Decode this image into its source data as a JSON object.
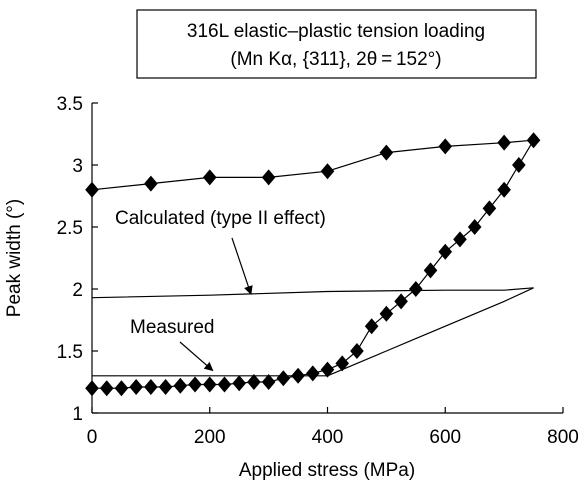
{
  "chart_data": {
    "type": "scatter",
    "title_lines": [
      "316L elastic–plastic tension loading",
      "(Mn Kα, {311}, 2θ = 152°)"
    ],
    "xlabel": "Applied stress (MPa)",
    "ylabel": "Peak width (°)",
    "xlim": [
      0,
      800
    ],
    "ylim": [
      1,
      3.5
    ],
    "x_ticks": [
      0,
      200,
      400,
      600,
      800
    ],
    "y_ticks": [
      1,
      1.5,
      2,
      2.5,
      3,
      3.5
    ],
    "x_tick_labels": [
      "0",
      "200",
      "400",
      "600",
      "800"
    ],
    "y_tick_labels": [
      "1",
      "1.5",
      "2",
      "2.5",
      "3",
      "3.5"
    ],
    "grid": false,
    "legend": "none",
    "series": [
      {
        "style": "line-markers",
        "marker": "diamond",
        "color": "#000000",
        "points": [
          [
            0,
            1.2
          ],
          [
            25,
            1.2
          ],
          [
            50,
            1.2
          ],
          [
            75,
            1.21
          ],
          [
            100,
            1.21
          ],
          [
            125,
            1.21
          ],
          [
            150,
            1.22
          ],
          [
            175,
            1.23
          ],
          [
            200,
            1.23
          ],
          [
            225,
            1.23
          ],
          [
            250,
            1.24
          ],
          [
            275,
            1.25
          ],
          [
            300,
            1.25
          ],
          [
            325,
            1.28
          ],
          [
            350,
            1.3
          ],
          [
            375,
            1.32
          ],
          [
            400,
            1.35
          ],
          [
            425,
            1.4
          ],
          [
            450,
            1.5
          ],
          [
            475,
            1.7
          ],
          [
            500,
            1.8
          ],
          [
            525,
            1.9
          ],
          [
            550,
            2.0
          ],
          [
            575,
            2.15
          ],
          [
            600,
            2.3
          ],
          [
            625,
            2.4
          ],
          [
            650,
            2.5
          ],
          [
            675,
            2.65
          ],
          [
            700,
            2.8
          ],
          [
            725,
            3.0
          ],
          [
            750,
            3.2
          ],
          [
            700,
            3.18
          ],
          [
            600,
            3.15
          ],
          [
            500,
            3.1
          ],
          [
            400,
            2.95
          ],
          [
            300,
            2.9
          ],
          [
            200,
            2.9
          ],
          [
            100,
            2.85
          ],
          [
            0,
            2.8
          ]
        ]
      },
      {
        "style": "line",
        "color": "#000000",
        "points": [
          [
            0,
            1.93
          ],
          [
            200,
            1.95
          ],
          [
            400,
            1.98
          ],
          [
            600,
            1.99
          ],
          [
            700,
            1.99
          ],
          [
            750,
            2.01
          ]
        ]
      },
      {
        "style": "line",
        "color": "#000000",
        "points": [
          [
            400,
            1.3
          ],
          [
            0,
            1.3
          ],
          [
            400,
            1.3
          ],
          [
            450,
            1.4
          ],
          [
            500,
            1.5
          ],
          [
            550,
            1.6
          ],
          [
            600,
            1.7
          ],
          [
            650,
            1.8
          ],
          [
            700,
            1.9
          ],
          [
            750,
            2.01
          ]
        ]
      }
    ],
    "annotations": [
      {
        "text": "Calculated (type II effect)",
        "arrow_to": [
          270,
          1.95
        ]
      },
      {
        "text": "Measured",
        "arrow_to": [
          205,
          1.31
        ]
      }
    ]
  }
}
